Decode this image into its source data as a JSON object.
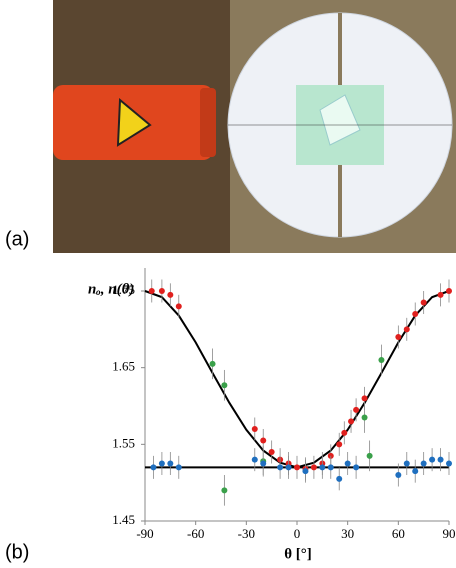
{
  "panel_labels": [
    "(a)",
    "(b)"
  ],
  "chart_data": {
    "type": "scatter",
    "y_label": "nₒ, n(θ)",
    "x_label": "θ [°]",
    "xlim": [
      -90,
      90
    ],
    "xticks": [
      -90,
      -60,
      -30,
      0,
      30,
      60,
      90
    ],
    "ylim": [
      1.45,
      1.78
    ],
    "yticks": [
      1.45,
      1.55,
      1.65,
      1.75
    ],
    "series": [
      {
        "mode": "line",
        "color": "#000000",
        "x": [
          -90,
          -80,
          -70,
          -60,
          -50,
          -40,
          -30,
          -20,
          -10,
          0,
          10,
          20,
          30,
          40,
          50,
          60,
          70,
          80,
          90
        ],
        "values": [
          1.75,
          1.742,
          1.718,
          1.683,
          1.643,
          1.604,
          1.569,
          1.542,
          1.526,
          1.52,
          1.526,
          1.542,
          1.569,
          1.604,
          1.643,
          1.683,
          1.718,
          1.742,
          1.75
        ]
      },
      {
        "mode": "line",
        "color": "#000000",
        "x": [
          -90,
          90
        ],
        "values": [
          1.52,
          1.52
        ]
      },
      {
        "mode": "markers",
        "color": "#e0201e",
        "x": [
          -86,
          -80,
          -75,
          -70,
          -25,
          -20,
          -15,
          -10,
          -5,
          0,
          5,
          10,
          15,
          20,
          25,
          28,
          32,
          35,
          40,
          60,
          65,
          70,
          75,
          85,
          90
        ],
        "values": [
          1.75,
          1.75,
          1.745,
          1.73,
          1.57,
          1.555,
          1.54,
          1.53,
          1.525,
          1.52,
          1.518,
          1.52,
          1.525,
          1.535,
          1.55,
          1.565,
          1.58,
          1.595,
          1.61,
          1.69,
          1.7,
          1.72,
          1.735,
          1.745,
          1.75
        ],
        "errors": [
          0.015,
          0.015,
          0.015,
          0.015,
          0.015,
          0.015,
          0.015,
          0.015,
          0.015,
          0.015,
          0.015,
          0.015,
          0.015,
          0.015,
          0.015,
          0.015,
          0.015,
          0.015,
          0.015,
          0.015,
          0.015,
          0.015,
          0.015,
          0.015,
          0.015
        ]
      },
      {
        "mode": "markers",
        "color": "#3aa04a",
        "x": [
          -50,
          -43,
          -43,
          -20,
          40,
          43,
          50
        ],
        "values": [
          1.655,
          1.627,
          1.49,
          1.528,
          1.585,
          1.535,
          1.66
        ],
        "errors": [
          0.02,
          0.02,
          0.02,
          0.02,
          0.02,
          0.02,
          0.02
        ]
      },
      {
        "mode": "markers",
        "color": "#1f6fbf",
        "x": [
          -85,
          -80,
          -75,
          -70,
          -25,
          -20,
          -10,
          -5,
          5,
          15,
          20,
          25,
          30,
          35,
          60,
          65,
          70,
          75,
          80,
          85,
          90
        ],
        "values": [
          1.52,
          1.525,
          1.525,
          1.52,
          1.53,
          1.525,
          1.52,
          1.52,
          1.515,
          1.52,
          1.52,
          1.505,
          1.525,
          1.52,
          1.51,
          1.525,
          1.515,
          1.525,
          1.53,
          1.53,
          1.525
        ],
        "errors": [
          0.015,
          0.015,
          0.015,
          0.015,
          0.015,
          0.015,
          0.015,
          0.015,
          0.015,
          0.015,
          0.015,
          0.015,
          0.015,
          0.015,
          0.015,
          0.015,
          0.015,
          0.015,
          0.015,
          0.015,
          0.015
        ]
      }
    ]
  }
}
